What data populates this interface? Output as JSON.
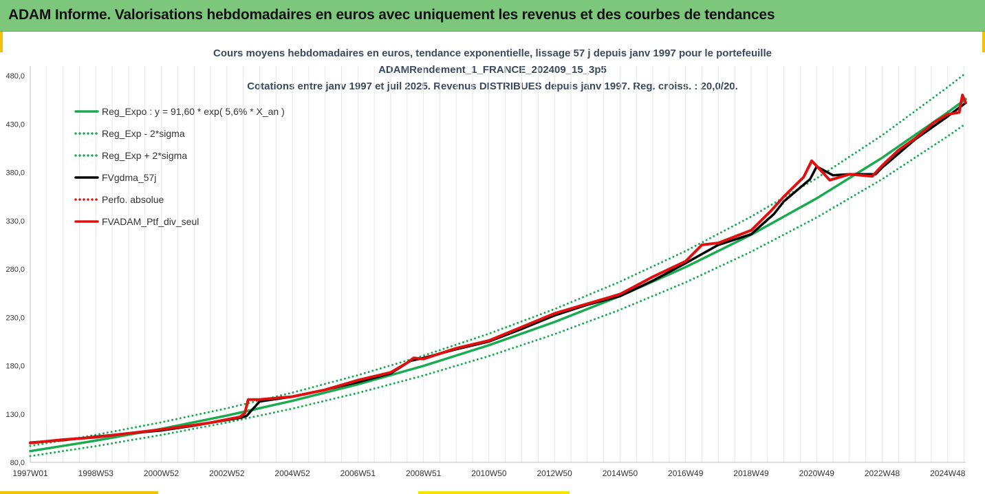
{
  "header": {
    "title": "ADAM Informe. Valorisations hebdomadaires en euros avec uniquement les revenus et des courbes de tendances"
  },
  "chart_data": {
    "type": "line",
    "title_lines": [
      "Cours moyens hebdomadaires  en euros, tendance exponentielle, lissage 57 j depuis janv 1997 pour le portefeuille",
      "ADAMRendement_1_FRANCE_202409_15_3p5",
      "Cotations  entre janv 1997 et juil 2025. Revenus DISTRIBUES depuis janv 1997. Reg. croiss. : 20,0/20."
    ],
    "xlabel": "",
    "ylabel": "",
    "xlim": [
      1997.0,
      2025.55
    ],
    "ylim": [
      80,
      490
    ],
    "y_ticks": [
      "80,0",
      "130,0",
      "180,0",
      "230,0",
      "280,0",
      "330,0",
      "380,0",
      "430,0",
      "480,0"
    ],
    "y_tick_values": [
      80,
      130,
      180,
      230,
      280,
      330,
      380,
      430,
      480
    ],
    "x_ticks": [
      "1997W01",
      "1998W53",
      "2000W52",
      "2002W52",
      "2004W52",
      "2006W51",
      "2008W51",
      "2010W50",
      "2012W50",
      "2014W50",
      "2016W49",
      "2018W49",
      "2020W49",
      "2022W48",
      "2024W48"
    ],
    "x_tick_values": [
      1997.0,
      1999.0,
      2001.0,
      2003.0,
      2005.0,
      2007.0,
      2009.0,
      2011.0,
      2013.0,
      2015.0,
      2017.0,
      2019.0,
      2021.0,
      2023.0,
      2025.0
    ],
    "grid": "vertical",
    "legend_position": "top-left",
    "series": [
      {
        "name": "Reg_Expo : y = 91,60 * exp( 5,6% *  X_an )",
        "color": "#1aaa50",
        "style": "solid",
        "x": [
          1997,
          1999,
          2001,
          2003,
          2005,
          2007,
          2009,
          2011,
          2013,
          2015,
          2017,
          2019,
          2021,
          2023,
          2025,
          2025.55
        ],
        "values": [
          91.6,
          102.5,
          114.7,
          128.4,
          143.6,
          160.7,
          179.8,
          201.2,
          225.2,
          252.0,
          282.0,
          315.5,
          353.1,
          395.1,
          442.1,
          455.8
        ]
      },
      {
        "name": "Reg_Exp - 2*sigma",
        "color": "#1aaa50",
        "style": "dotted",
        "x": [
          1997,
          1999,
          2001,
          2003,
          2005,
          2007,
          2009,
          2011,
          2013,
          2015,
          2017,
          2019,
          2021,
          2023,
          2025,
          2025.55
        ],
        "values": [
          86.5,
          96.8,
          108.3,
          121.2,
          135.6,
          151.8,
          169.8,
          190.0,
          212.6,
          237.9,
          266.2,
          297.9,
          333.3,
          373.0,
          417.4,
          430.3
        ]
      },
      {
        "name": "Reg_Exp + 2*sigma",
        "color": "#1aaa50",
        "style": "dotted",
        "x": [
          1997,
          1999,
          2001,
          2003,
          2005,
          2007,
          2009,
          2011,
          2013,
          2015,
          2017,
          2019,
          2021,
          2023,
          2025,
          2025.55
        ],
        "values": [
          97.0,
          108.5,
          121.4,
          135.9,
          152.1,
          170.2,
          190.4,
          213.1,
          238.5,
          266.9,
          298.6,
          334.2,
          373.9,
          418.4,
          468.2,
          482.7
        ]
      },
      {
        "name": "FVgdma_57j",
        "color": "#000000",
        "style": "solid",
        "x": [
          1997,
          1998,
          1999,
          2000,
          2001,
          2002,
          2002.5,
          2003.4,
          2003.6,
          2004,
          2005,
          2006,
          2007,
          2008,
          2008.6,
          2009,
          2010,
          2011,
          2012,
          2013,
          2014,
          2015,
          2016,
          2017,
          2018,
          2019,
          2019.7,
          2020,
          2020.8,
          2021,
          2021.5,
          2022,
          2022.8,
          2023,
          2024,
          2025,
          2025.55
        ],
        "values": [
          100.5,
          103.0,
          106.5,
          110.0,
          113.0,
          118.0,
          121.0,
          126.0,
          128.0,
          143.0,
          148.0,
          155.0,
          163.0,
          172.0,
          185.0,
          188.0,
          197.0,
          205.0,
          218.0,
          232.0,
          243.0,
          252.0,
          268.0,
          286.0,
          305.0,
          316.0,
          337.0,
          350.0,
          373.0,
          386.0,
          377.0,
          378.0,
          378.0,
          385.0,
          414.0,
          438.0,
          452.0
        ]
      },
      {
        "name": "Perfo. absolue",
        "color": "#e01010",
        "style": "dotted",
        "x": [],
        "values": []
      },
      {
        "name": "FVADAM_Ptf_div_seul",
        "color": "#e01010",
        "style": "solid",
        "x": [
          1997,
          1998,
          1999,
          2000,
          2001,
          2002,
          2002.5,
          2003.4,
          2003.55,
          2003.65,
          2004,
          2005,
          2006,
          2007,
          2008,
          2008.5,
          2008.7,
          2009,
          2010,
          2011,
          2012,
          2013,
          2014,
          2015,
          2016,
          2017,
          2017.5,
          2018,
          2019,
          2019.6,
          2020,
          2020.6,
          2020.85,
          2021.1,
          2021.4,
          2022,
          2022.7,
          2023,
          2023.5,
          2024,
          2024.6,
          2025,
          2025.35,
          2025.45,
          2025.55
        ],
        "values": [
          100.0,
          103.5,
          106.0,
          110.0,
          114.0,
          118.5,
          121.0,
          127.0,
          131.0,
          145.0,
          145.0,
          148.0,
          155.0,
          165.0,
          173.0,
          183.0,
          188.0,
          187.0,
          198.0,
          206.0,
          220.0,
          234.0,
          244.0,
          254.0,
          272.0,
          288.0,
          305.0,
          307.0,
          320.0,
          340.0,
          355.0,
          375.0,
          392.0,
          383.0,
          372.0,
          378.0,
          376.0,
          387.0,
          403.0,
          415.0,
          432.0,
          440.0,
          442.0,
          460.0,
          452.0
        ]
      }
    ]
  }
}
